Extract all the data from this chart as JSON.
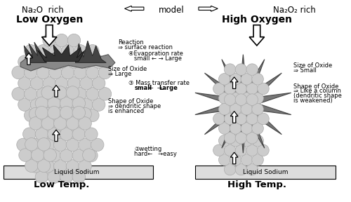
{
  "title_left": "Na₂O  rich",
  "title_center": "model",
  "title_right": "Na₂O₂ rich",
  "subtitle_left": "Low Oxygen",
  "subtitle_right": "High Oxygen",
  "bottom_left": "Low Temp.",
  "bottom_right": "High Temp.",
  "liquid_sodium_left": "Liquid Sodium",
  "liquid_sodium_right": "Liquid Sodium",
  "reaction_label": "Reaction",
  "surface_reaction": "⇒ surface reaction",
  "evap_label": "④Evaporation rate",
  "evap_scale_left": "small ← ",
  "evap_scale_right": "→ Large",
  "size_oxide_left_label": "Size of Oxide",
  "size_oxide_left_val": "⇒ Large",
  "mass_transfer_label": "③ Mass transfer rate",
  "mass_bold_left": "small",
  "mass_arrow": " ←  → ",
  "mass_bold_right": "Large",
  "shape_oxide_left_label": "Shape of Oxide",
  "shape_oxide_left_val": "⇒ dendritic shape",
  "shape_oxide_left_val2": "is enhanced",
  "wetting_label": "②wetting",
  "wetting_scale": "hard←   →easy",
  "size_oxide_right_label": "Size of Oxide",
  "size_oxide_right_val": "⇒ Small",
  "shape_oxide_right_label": "Shape of Oxide",
  "shape_oxide_right_val": "⇒ Like a column",
  "shape_oxide_right_val2": "(dendritic shape",
  "shape_oxide_right_val3": "is weakened)",
  "bg_color": "#ffffff",
  "bubble_color": "#cccccc",
  "bubble_edge": "#aaaaaa",
  "spike_dark": "#555555",
  "spike_bg": "#888888",
  "sodium_bar": "#dddddd",
  "text_color": "#000000"
}
